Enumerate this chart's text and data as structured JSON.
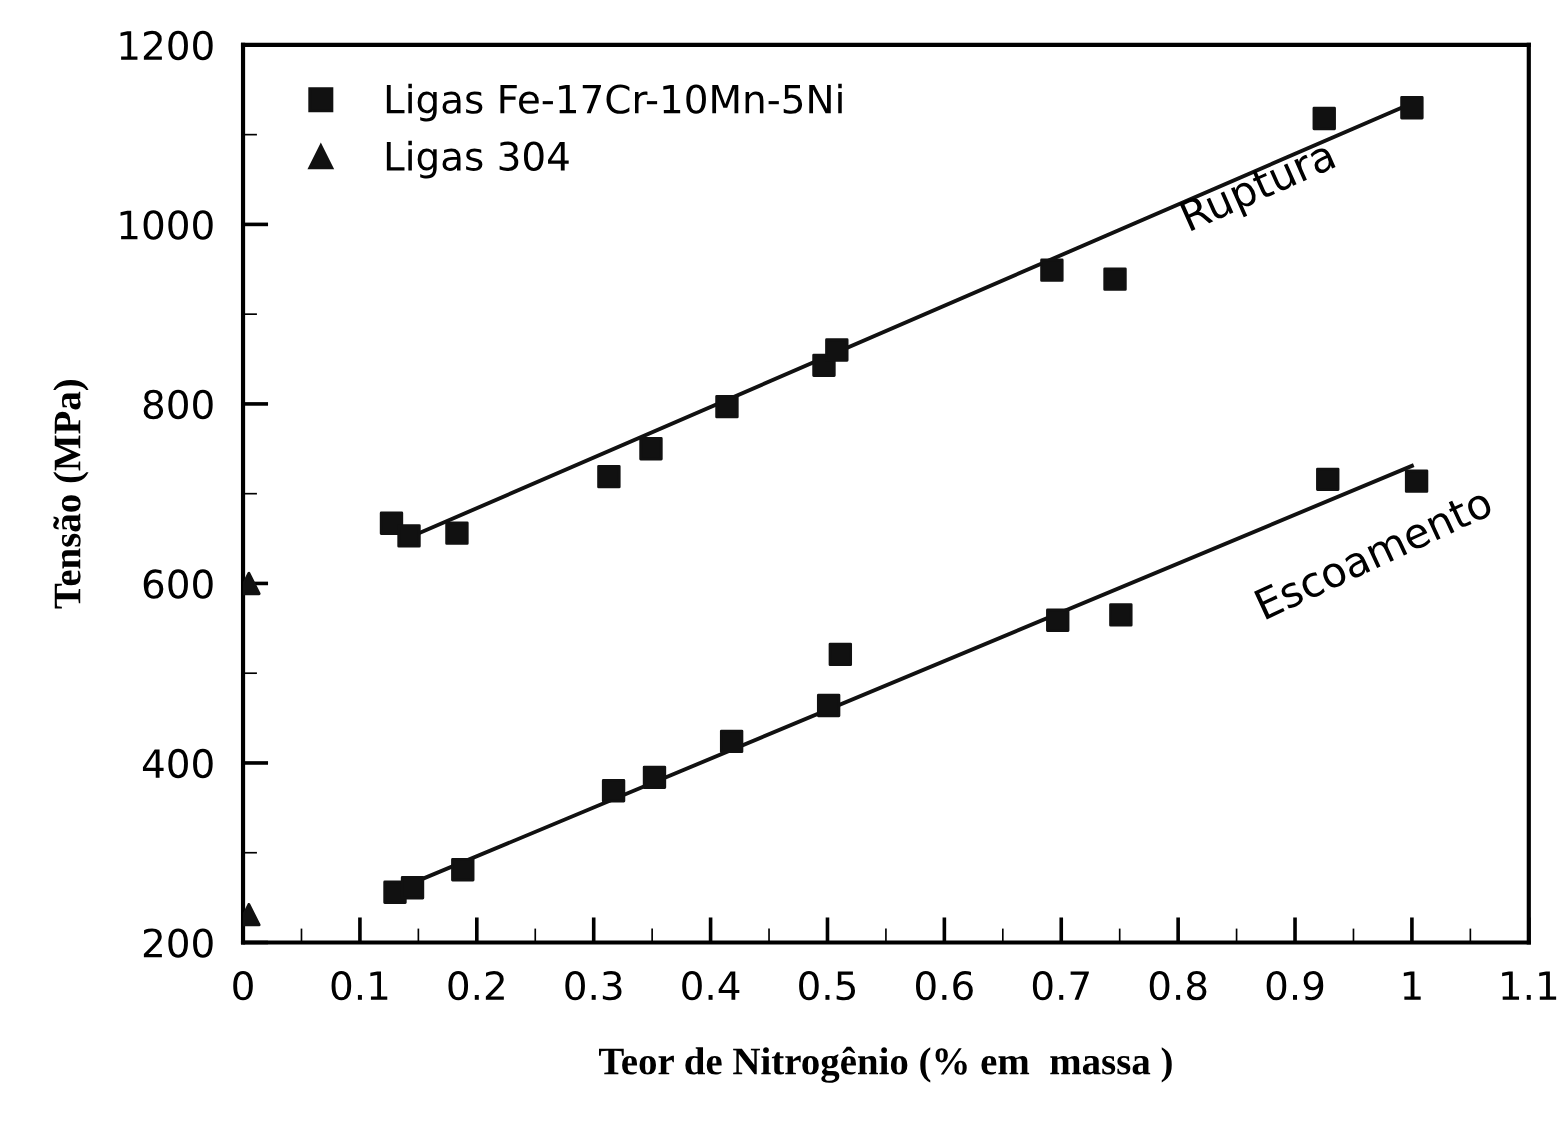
{
  "chart_data": {
    "type": "scatter",
    "xlabel": "Teor de Nitrogênio (% em  massa )",
    "ylabel": "Tensão (MPa)",
    "xlim": [
      0,
      1.1
    ],
    "xticks": [
      0,
      0.1,
      0.2,
      0.3,
      0.4,
      0.5,
      0.6,
      0.7,
      0.8,
      0.9,
      1,
      1.1
    ],
    "ylim": [
      200,
      1200
    ],
    "yticks": [
      200,
      400,
      600,
      800,
      1000,
      1200
    ],
    "legend": "top left",
    "grid": false,
    "series": [
      {
        "name": "Ligas Fe-17Cr-10Mn-5Ni",
        "color": "#111111",
        "marker": "square",
        "x": [
          0.127,
          0.142,
          0.183,
          0.313,
          0.349,
          0.414,
          0.497,
          0.508,
          0.692,
          0.746,
          0.925,
          1.0,
          0.13,
          0.145,
          0.188,
          0.317,
          0.352,
          0.418,
          0.501,
          0.511,
          0.697,
          0.751,
          0.928,
          1.004
        ],
        "values": [
          667,
          653,
          656,
          719,
          750,
          797,
          843,
          860,
          949,
          939,
          1118,
          1130,
          256,
          261,
          281,
          369,
          384,
          424,
          464,
          521,
          559,
          565,
          716,
          714
        ]
      },
      {
        "name": "Ligas 304",
        "color": "#111111",
        "marker": "triangle",
        "x": [
          0.005,
          0.005
        ],
        "values": [
          600,
          231
        ]
      },
      {
        "type": "line",
        "color": "#111111",
        "x": [
          0.14,
          1.0
        ],
        "values": [
          650,
          1135
        ]
      },
      {
        "type": "line",
        "color": "#111111",
        "x": [
          0.13,
          1.0
        ],
        "values": [
          258,
          731
        ]
      }
    ],
    "annotations": [
      "Ruptura",
      "Escoamento"
    ]
  }
}
